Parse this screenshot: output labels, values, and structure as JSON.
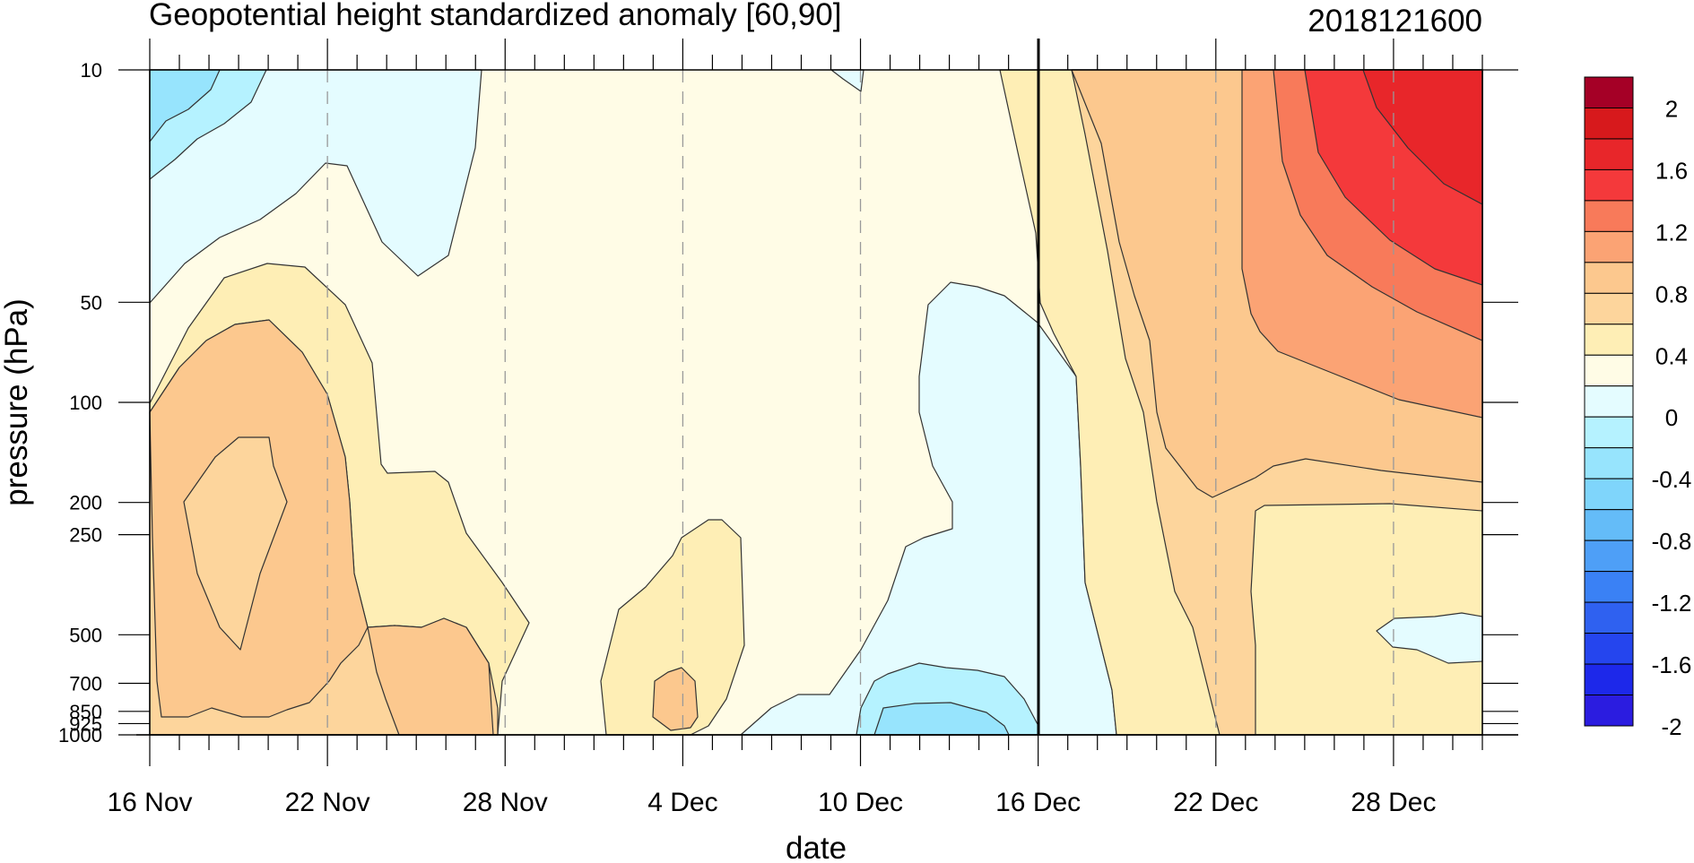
{
  "chart_data": {
    "type": "heatmap",
    "title": "Geopotential height standardized anomaly [60,90]",
    "timestamp": "2018121600",
    "xlabel": "date",
    "ylabel": "pressure (hPa)",
    "x_ticks": [
      "16 Nov",
      "22 Nov",
      "28 Nov",
      "4 Dec",
      "10 Dec",
      "16 Dec",
      "22 Dec",
      "28 Dec"
    ],
    "x_range": [
      "16 Nov",
      "31 Dec"
    ],
    "y_ticks": [
      "10",
      "50",
      "100",
      "200",
      "250",
      "500",
      "700",
      "850",
      "925",
      "1000"
    ],
    "y_range": [
      1000,
      10
    ],
    "y_scale": "log",
    "marker_date": "16 Dec",
    "colorbar": {
      "labels": [
        "2",
        "1.6",
        "1.2",
        "0.8",
        "0.4",
        "0",
        "-0.4",
        "-0.8",
        "-1.2",
        "-1.6",
        "-2"
      ],
      "colors": [
        "#a50026",
        "#d7191c",
        "#e8262a",
        "#f4393b",
        "#f87a5a",
        "#fba374",
        "#fcc88e",
        "#fdd59c",
        "#feeeb5",
        "#fffce6",
        "#e4fcff",
        "#b5f2ff",
        "#97e4fd",
        "#7fd5fb",
        "#64bcf8",
        "#4e9ff7",
        "#3a81f5",
        "#2f61f0",
        "#2545ee",
        "#1d28ea",
        "#2b1ce0"
      ]
    }
  }
}
